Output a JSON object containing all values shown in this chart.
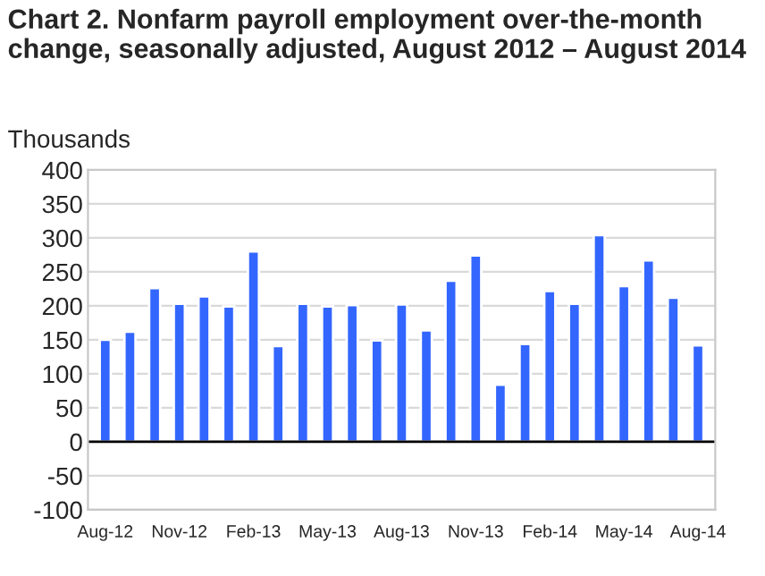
{
  "chart_data": {
    "type": "bar",
    "title": "Chart 2. Nonfarm payroll employment over-the-month change, seasonally adjusted, August 2012 – August 2014",
    "ylabel": "Thousands",
    "categories": [
      "Aug-12",
      null,
      null,
      "Nov-12",
      null,
      null,
      "Feb-13",
      null,
      null,
      "May-13",
      null,
      null,
      "Aug-13",
      null,
      null,
      "Nov-13",
      null,
      null,
      "Feb-14",
      null,
      null,
      "May-14",
      null,
      null,
      "Aug-14"
    ],
    "values": [
      150,
      162,
      226,
      203,
      214,
      199,
      280,
      141,
      203,
      199,
      201,
      149,
      202,
      164,
      237,
      274,
      84,
      144,
      222,
      203,
      304,
      229,
      267,
      212,
      142
    ],
    "color": "#3366ff",
    "ylim": [
      -100,
      400
    ],
    "yticks": [
      -100,
      -50,
      0,
      50,
      100,
      150,
      200,
      250,
      300,
      350,
      400
    ],
    "ref_lines": [
      {
        "axis": "y",
        "value": 0,
        "color": "#000000"
      }
    ],
    "grid": "y"
  }
}
